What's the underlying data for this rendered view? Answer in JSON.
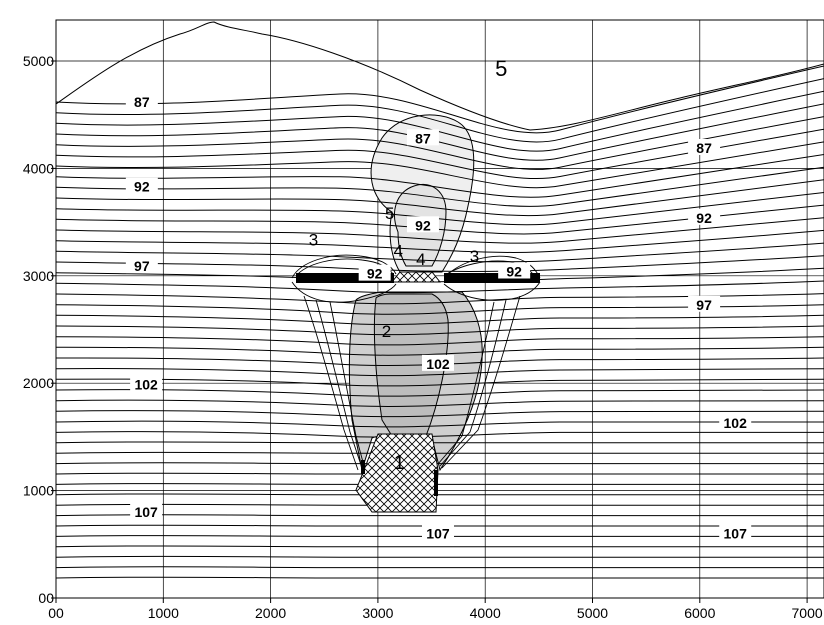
{
  "chart_data": {
    "type": "contour",
    "title": "",
    "xlabel": "",
    "ylabel": "",
    "xlim": [
      0,
      7200
    ],
    "ylim": [
      0,
      5500
    ],
    "grid": true,
    "x_ticks": [
      {
        "value": 0,
        "label": "00"
      },
      {
        "value": 1000,
        "label": "1000"
      },
      {
        "value": 2000,
        "label": "2000"
      },
      {
        "value": 3000,
        "label": "3000"
      },
      {
        "value": 4000,
        "label": "4000"
      },
      {
        "value": 5000,
        "label": "5000"
      },
      {
        "value": 6000,
        "label": "6000"
      },
      {
        "value": 7000,
        "label": "7000"
      }
    ],
    "y_ticks": [
      {
        "value": 0,
        "label": "00"
      },
      {
        "value": 1000,
        "label": "1000"
      },
      {
        "value": 2000,
        "label": "2000"
      },
      {
        "value": 3000,
        "label": "3000"
      },
      {
        "value": 4000,
        "label": "4000"
      },
      {
        "value": 5000,
        "label": "5000"
      }
    ],
    "contour_labels": [
      {
        "text": "87",
        "x": 800,
        "y": 4620
      },
      {
        "text": "87",
        "x": 3420,
        "y": 4280
      },
      {
        "text": "87",
        "x": 6040,
        "y": 4190
      },
      {
        "text": "92",
        "x": 800,
        "y": 3830
      },
      {
        "text": "92",
        "x": 3420,
        "y": 3470
      },
      {
        "text": "92",
        "x": 6040,
        "y": 3540
      },
      {
        "text": "97",
        "x": 800,
        "y": 3090
      },
      {
        "text": "97",
        "x": 6040,
        "y": 2730
      },
      {
        "text": "102",
        "x": 840,
        "y": 1990
      },
      {
        "text": "102",
        "x": 3560,
        "y": 2180
      },
      {
        "text": "102",
        "x": 6330,
        "y": 1630
      },
      {
        "text": "107",
        "x": 840,
        "y": 800
      },
      {
        "text": "107",
        "x": 3560,
        "y": 600
      },
      {
        "text": "107",
        "x": 6330,
        "y": 600
      },
      {
        "text": "92",
        "x": 2970,
        "y": 3020
      },
      {
        "text": "92",
        "x": 4270,
        "y": 3040
      }
    ],
    "zone_labels": [
      {
        "text": "1",
        "x": 3200,
        "y": 1200
      },
      {
        "text": "2",
        "x": 3080,
        "y": 2430
      },
      {
        "text": "3",
        "x": 2400,
        "y": 3280
      },
      {
        "text": "3",
        "x": 3900,
        "y": 3130
      },
      {
        "text": "4",
        "x": 3190,
        "y": 3180
      },
      {
        "text": "4",
        "x": 3400,
        "y": 3100
      },
      {
        "text": "5",
        "x": 4150,
        "y": 4860
      },
      {
        "text": "5",
        "x": 3110,
        "y": 3530
      }
    ],
    "shaded_regions": [
      {
        "name": "dark-gray-plume",
        "fill": "#cfcfcf"
      },
      {
        "name": "light-gray-plume",
        "fill": "#efefef"
      },
      {
        "name": "hatched-source-block",
        "fill": "hatch"
      },
      {
        "name": "horizontal-barrier",
        "fill": "#000000"
      }
    ],
    "colors": {
      "line": "#000000",
      "grid": "#000000",
      "background": "#ffffff"
    }
  }
}
